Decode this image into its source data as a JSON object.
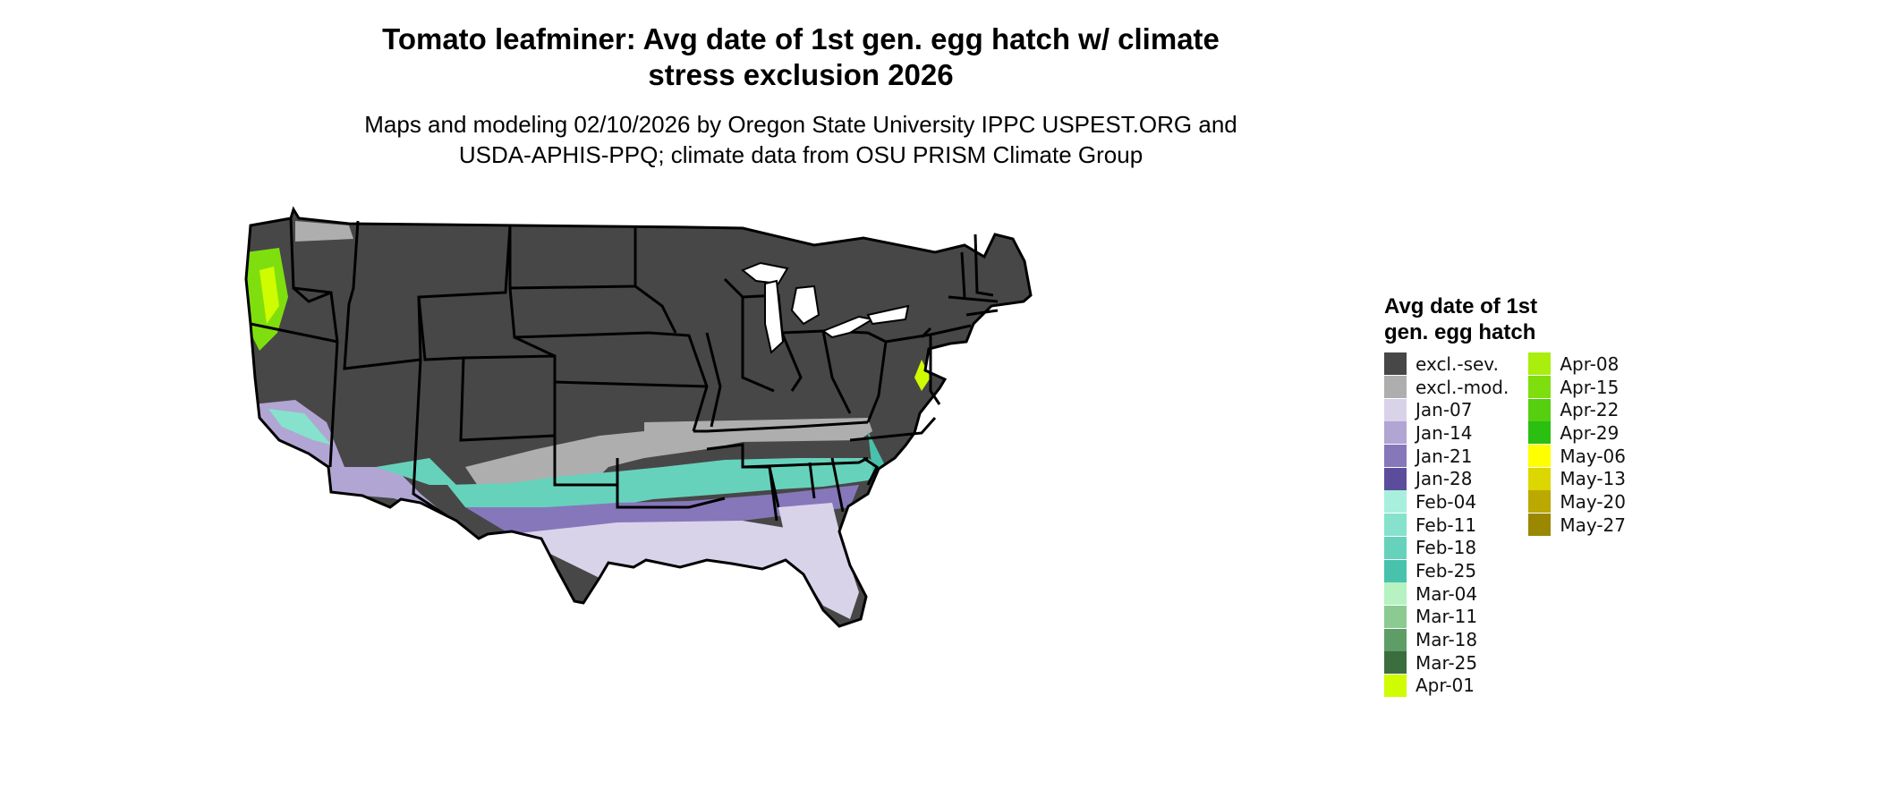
{
  "header": {
    "title": "Tomato leafminer: Avg date of 1st gen. egg hatch w/ climate stress exclusion 2026",
    "subtitle": "Maps and modeling 02/10/2026 by Oregon State University IPPC USPEST.ORG and USDA-APHIS-PPQ; climate data from OSU PRISM Climate Group"
  },
  "legend": {
    "title": "Avg date of 1st gen. egg hatch",
    "items": [
      {
        "label": "excl.-sev.",
        "color": "#474747"
      },
      {
        "label": "excl.-mod.",
        "color": "#aeaeae"
      },
      {
        "label": "Jan-07",
        "color": "#d9d3ea"
      },
      {
        "label": "Jan-14",
        "color": "#b0a5d3"
      },
      {
        "label": "Jan-21",
        "color": "#8677bb"
      },
      {
        "label": "Jan-28",
        "color": "#5b4d9c"
      },
      {
        "label": "Feb-04",
        "color": "#a8f0dd"
      },
      {
        "label": "Feb-11",
        "color": "#86e2cc"
      },
      {
        "label": "Feb-18",
        "color": "#67d2bc"
      },
      {
        "label": "Feb-25",
        "color": "#48c2ac"
      },
      {
        "label": "Mar-04",
        "color": "#b6f2c2"
      },
      {
        "label": "Mar-11",
        "color": "#8bcb92"
      },
      {
        "label": "Mar-18",
        "color": "#5e9d66"
      },
      {
        "label": "Mar-25",
        "color": "#3a6e3f"
      },
      {
        "label": "Apr-01",
        "color": "#cffc00"
      },
      {
        "label": "Apr-08",
        "color": "#a9ee0c"
      },
      {
        "label": "Apr-15",
        "color": "#7fdf0e"
      },
      {
        "label": "Apr-22",
        "color": "#56cf10"
      },
      {
        "label": "Apr-29",
        "color": "#2bbf12"
      },
      {
        "label": "May-06",
        "color": "#ffff00"
      },
      {
        "label": "May-13",
        "color": "#dcd700"
      },
      {
        "label": "May-20",
        "color": "#bba800"
      },
      {
        "label": "May-27",
        "color": "#9a8800"
      }
    ]
  }
}
